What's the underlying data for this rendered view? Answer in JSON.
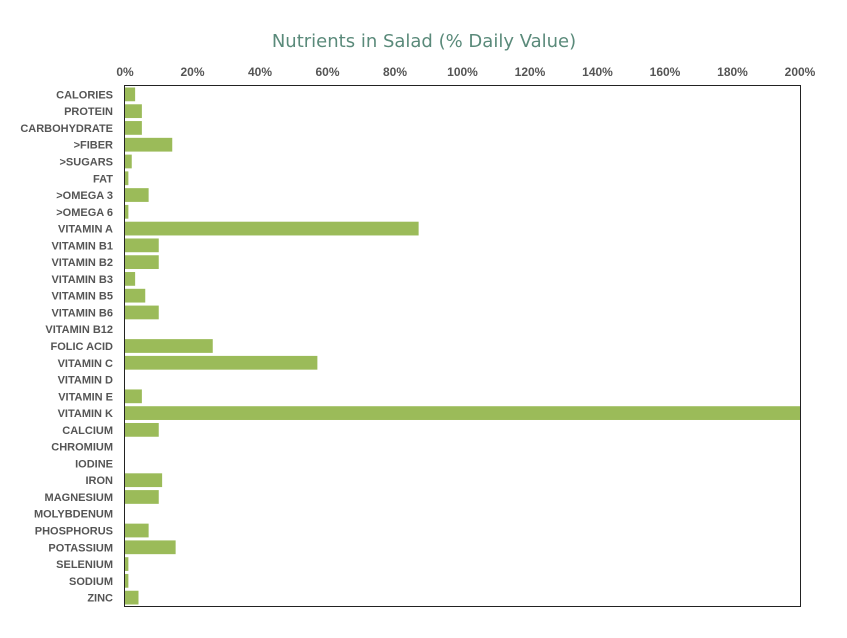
{
  "chart_data": {
    "type": "bar",
    "orientation": "horizontal",
    "title": "Nutrients in Salad (% Daily Value)",
    "xlabel": "",
    "ylabel": "",
    "xlim": [
      0,
      200
    ],
    "x_ticks": [
      "0%",
      "20%",
      "40%",
      "60%",
      "80%",
      "100%",
      "120%",
      "140%",
      "160%",
      "180%",
      "200%"
    ],
    "x_axis_position": "top",
    "grid": false,
    "legend": "none",
    "bar_color": "#9bbb59",
    "title_color": "#5a8a7a",
    "categories": [
      "CALORIES",
      "PROTEIN",
      "CARBOHYDRATE",
      ">FIBER",
      ">SUGARS",
      "FAT",
      ">OMEGA 3",
      ">OMEGA 6",
      "VITAMIN A",
      "VITAMIN B1",
      "VITAMIN B2",
      "VITAMIN B3",
      "VITAMIN B5",
      "VITAMIN B6",
      "VITAMIN B12",
      "FOLIC ACID",
      "VITAMIN C",
      "VITAMIN D",
      "VITAMIN E",
      "VITAMIN K",
      "CALCIUM",
      "CHROMIUM",
      "IODINE",
      "IRON",
      "MAGNESIUM",
      "MOLYBDENUM",
      "PHOSPHORUS",
      "POTASSIUM",
      "SELENIUM",
      "SODIUM",
      "ZINC"
    ],
    "values": [
      3,
      5,
      5,
      14,
      2,
      1,
      7,
      1,
      87,
      10,
      10,
      3,
      6,
      10,
      0,
      26,
      57,
      0,
      5,
      200,
      10,
      0,
      0,
      11,
      10,
      0,
      7,
      15,
      1,
      1,
      4
    ]
  }
}
